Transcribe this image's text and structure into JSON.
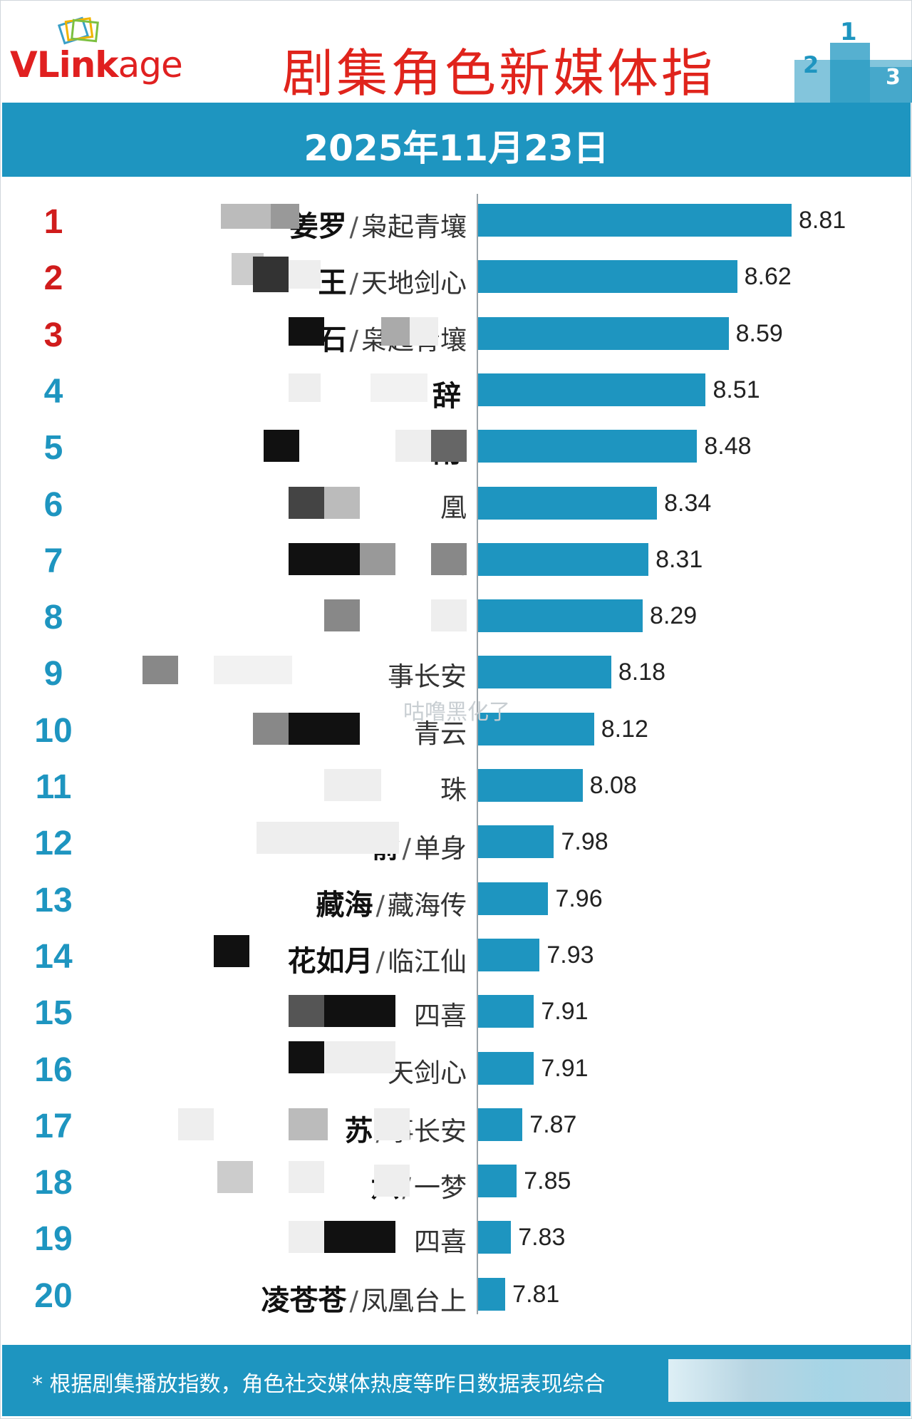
{
  "brand": {
    "logo_text_v": "V",
    "logo_text_link": "Link",
    "logo_text_age": "age"
  },
  "header": {
    "title": "剧集角色新媒体指数",
    "date": "2025年11月23日"
  },
  "colors": {
    "accent": "#1e95c0",
    "title_red": "#e0241c",
    "top_rank_red": "#d01c1c"
  },
  "chart_data": {
    "type": "bar",
    "orientation": "horizontal",
    "title": "剧集角色新媒体指数",
    "xlim": [
      0,
      8.81
    ],
    "ranks": [
      "1",
      "2",
      "3",
      "4",
      "5",
      "6",
      "7",
      "8",
      "9",
      "10",
      "11",
      "12",
      "13",
      "14",
      "15",
      "16",
      "17",
      "18",
      "19",
      "20"
    ],
    "categories": [
      {
        "character": "姜罗",
        "show": "枭起青壤"
      },
      {
        "character": "王",
        "show": "天地剑心"
      },
      {
        "character": "石",
        "show": "枭起青壤"
      },
      {
        "character": "辞",
        "show": ""
      },
      {
        "character": "雨",
        "show": ""
      },
      {
        "character": "",
        "show": "凰"
      },
      {
        "character": "",
        "show": "山"
      },
      {
        "character": "",
        "show": ""
      },
      {
        "character": "",
        "show": "事长安"
      },
      {
        "character": "",
        "show": "青云"
      },
      {
        "character": "",
        "show": "珠"
      },
      {
        "character": "俞",
        "show": "单身"
      },
      {
        "character": "藏海",
        "show": "藏海传"
      },
      {
        "character": "花如月",
        "show": "临江仙"
      },
      {
        "character": "",
        "show": "四喜"
      },
      {
        "character": "",
        "show": "天剑心"
      },
      {
        "character": "苏",
        "show": "事长安"
      },
      {
        "character": "六",
        "show": "一梦"
      },
      {
        "character": "",
        "show": "四喜"
      },
      {
        "character": "凌苍苍",
        "show": "凤凰台上"
      }
    ],
    "values": [
      8.81,
      8.62,
      8.59,
      8.51,
      8.48,
      8.34,
      8.31,
      8.29,
      8.18,
      8.12,
      8.08,
      7.98,
      7.96,
      7.93,
      7.91,
      7.91,
      7.87,
      7.85,
      7.83,
      7.81
    ],
    "value_labels": [
      "8.81",
      "8.62",
      "8.59",
      "8.51",
      "8.48",
      "8.34",
      "8.31",
      "8.29",
      "8.18",
      "8.12",
      "8.08",
      "7.98",
      "7.96",
      "7.93",
      "7.91",
      "7.91",
      "7.87",
      "7.85",
      "7.83",
      "7.81"
    ]
  },
  "watermark": "咕噜黑化了",
  "footer": {
    "note": "* 根据剧集播放指数，角色社交媒体热度等昨日数据表现综合"
  }
}
